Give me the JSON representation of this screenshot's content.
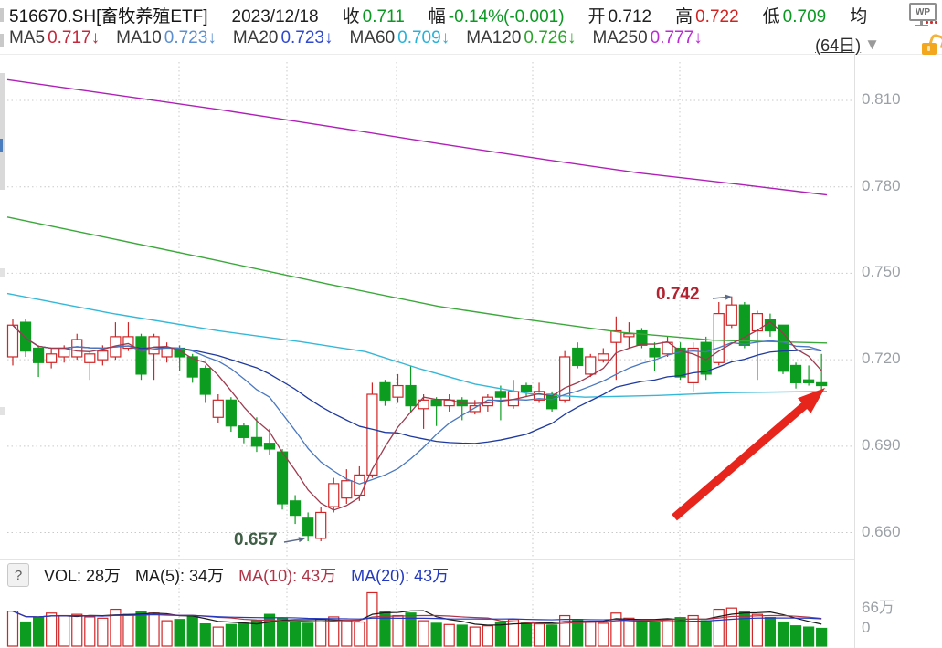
{
  "header": {
    "symbol": "516670.SH[畜牧养殖ETF]",
    "date": "2023/12/18",
    "fields": [
      {
        "label": "收",
        "value": "0.711",
        "color": "#0a9a22"
      },
      {
        "label": "幅",
        "value": "-0.14%(-0.001)",
        "color": "#0a9a22"
      },
      {
        "label": "开",
        "value": "0.712",
        "color": "#1f1f1f"
      },
      {
        "label": "高",
        "value": "0.722",
        "color": "#d02422"
      },
      {
        "label": "低",
        "value": "0.709",
        "color": "#0a9a22"
      },
      {
        "label": "均",
        "value": "",
        "color": "#1f1f1f"
      }
    ],
    "ma_row": [
      {
        "label": "MA5",
        "value": "0.717",
        "arrow": "↓",
        "color": "#c5283c"
      },
      {
        "label": "MA10",
        "value": "0.723",
        "arrow": "↓",
        "color": "#5b8fd0"
      },
      {
        "label": "MA20",
        "value": "0.723",
        "arrow": "↓",
        "color": "#2f49d1"
      },
      {
        "label": "MA60",
        "value": "0.709",
        "arrow": "↓",
        "color": "#27b2d8"
      },
      {
        "label": "MA120",
        "value": "0.726",
        "arrow": "↓",
        "color": "#2ca52c"
      },
      {
        "label": "MA250",
        "value": "0.777",
        "arrow": "↓",
        "color": "#bb2bd4"
      }
    ],
    "period": "(64日)",
    "wps_label": "WP"
  },
  "volume_header": {
    "help": "?",
    "vol": {
      "text": "VOL: 28万",
      "color": "#1c1c1c"
    },
    "ma5": {
      "text": "MA(5): 34万",
      "color": "#1c1c1c"
    },
    "ma10": {
      "text": "MA(10): 43万",
      "color": "#b03346"
    },
    "ma20": {
      "text": "MA(20): 43万",
      "color": "#2339c0"
    }
  },
  "chart_data": {
    "type": "candlestick",
    "title": "516670.SH 畜牧养殖ETF 日K线 (64日)",
    "period_days": 64,
    "y_ticks": [
      0.81,
      0.78,
      0.75,
      0.72,
      0.69,
      0.66
    ],
    "y_tick_labels": [
      "0.810",
      "0.780",
      "0.750",
      "0.720",
      "0.690",
      "0.660"
    ],
    "v_grid_x": [
      196,
      314,
      434,
      583,
      744
    ],
    "vol_ticks": [
      {
        "label": "66万",
        "y": 662
      },
      {
        "label": "0",
        "y": 689
      }
    ],
    "candles": [
      [
        0.721,
        0.734,
        0.718,
        0.732
      ],
      [
        0.733,
        0.734,
        0.721,
        0.723
      ],
      [
        0.724,
        0.725,
        0.714,
        0.719
      ],
      [
        0.719,
        0.724,
        0.717,
        0.722
      ],
      [
        0.721,
        0.725,
        0.719,
        0.724
      ],
      [
        0.721,
        0.729,
        0.72,
        0.727
      ],
      [
        0.719,
        0.723,
        0.713,
        0.722
      ],
      [
        0.72,
        0.725,
        0.718,
        0.723
      ],
      [
        0.721,
        0.733,
        0.72,
        0.728
      ],
      [
        0.724,
        0.733,
        0.723,
        0.728
      ],
      [
        0.728,
        0.729,
        0.713,
        0.715
      ],
      [
        0.722,
        0.729,
        0.713,
        0.728
      ],
      [
        0.721,
        0.726,
        0.719,
        0.724
      ],
      [
        0.724,
        0.725,
        0.716,
        0.721
      ],
      [
        0.721,
        0.722,
        0.712,
        0.714
      ],
      [
        0.717,
        0.718,
        0.705,
        0.708
      ],
      [
        0.7,
        0.708,
        0.698,
        0.706
      ],
      [
        0.706,
        0.707,
        0.695,
        0.697
      ],
      [
        0.697,
        0.698,
        0.691,
        0.693
      ],
      [
        0.693,
        0.7,
        0.688,
        0.69
      ],
      [
        0.691,
        0.696,
        0.687,
        0.689
      ],
      [
        0.688,
        0.689,
        0.668,
        0.67
      ],
      [
        0.671,
        0.673,
        0.663,
        0.666
      ],
      [
        0.665,
        0.667,
        0.657,
        0.659
      ],
      [
        0.658,
        0.669,
        0.657,
        0.667
      ],
      [
        0.669,
        0.679,
        0.667,
        0.677
      ],
      [
        0.672,
        0.682,
        0.67,
        0.678
      ],
      [
        0.673,
        0.683,
        0.671,
        0.68
      ],
      [
        0.68,
        0.712,
        0.679,
        0.708
      ],
      [
        0.712,
        0.713,
        0.704,
        0.706
      ],
      [
        0.707,
        0.715,
        0.705,
        0.711
      ],
      [
        0.711,
        0.718,
        0.702,
        0.704
      ],
      [
        0.703,
        0.708,
        0.696,
        0.706
      ],
      [
        0.706,
        0.707,
        0.697,
        0.704
      ],
      [
        0.704,
        0.708,
        0.702,
        0.706
      ],
      [
        0.706,
        0.707,
        0.699,
        0.704
      ],
      [
        0.702,
        0.706,
        0.701,
        0.704
      ],
      [
        0.704,
        0.708,
        0.702,
        0.707
      ],
      [
        0.709,
        0.711,
        0.699,
        0.707
      ],
      [
        0.704,
        0.713,
        0.703,
        0.709
      ],
      [
        0.711,
        0.712,
        0.707,
        0.709
      ],
      [
        0.706,
        0.712,
        0.705,
        0.709
      ],
      [
        0.708,
        0.709,
        0.702,
        0.703
      ],
      [
        0.706,
        0.723,
        0.705,
        0.721
      ],
      [
        0.724,
        0.726,
        0.717,
        0.718
      ],
      [
        0.715,
        0.722,
        0.714,
        0.721
      ],
      [
        0.72,
        0.724,
        0.719,
        0.722
      ],
      [
        0.726,
        0.735,
        0.713,
        0.73
      ],
      [
        0.728,
        0.733,
        0.724,
        0.729
      ],
      [
        0.73,
        0.731,
        0.724,
        0.725
      ],
      [
        0.724,
        0.726,
        0.716,
        0.721
      ],
      [
        0.722,
        0.728,
        0.721,
        0.726
      ],
      [
        0.724,
        0.726,
        0.713,
        0.714
      ],
      [
        0.712,
        0.726,
        0.709,
        0.724
      ],
      [
        0.726,
        0.728,
        0.713,
        0.715
      ],
      [
        0.719,
        0.74,
        0.718,
        0.736
      ],
      [
        0.732,
        0.742,
        0.731,
        0.739
      ],
      [
        0.739,
        0.74,
        0.724,
        0.725
      ],
      [
        0.73,
        0.737,
        0.713,
        0.736
      ],
      [
        0.734,
        0.736,
        0.728,
        0.73
      ],
      [
        0.732,
        0.732,
        0.715,
        0.716
      ],
      [
        0.718,
        0.719,
        0.71,
        0.712
      ],
      [
        0.713,
        0.718,
        0.711,
        0.712
      ],
      [
        0.712,
        0.722,
        0.709,
        0.711
      ]
    ],
    "volumes": [
      55,
      38,
      45,
      52,
      48,
      50,
      46,
      44,
      58,
      50,
      55,
      52,
      40,
      42,
      48,
      35,
      30,
      34,
      36,
      40,
      50,
      44,
      38,
      36,
      42,
      46,
      40,
      38,
      84,
      55,
      48,
      52,
      40,
      36,
      34,
      33,
      30,
      32,
      38,
      42,
      36,
      35,
      33,
      48,
      42,
      38,
      36,
      52,
      44,
      40,
      38,
      42,
      45,
      48,
      40,
      58,
      60,
      55,
      50,
      45,
      38,
      32,
      30,
      28
    ],
    "ma_windows": {
      "ma5": 5,
      "ma10": 10,
      "ma20": 20
    },
    "ma_overlays": {
      "ma250": [
        [
          8,
          0.8172
        ],
        [
          120,
          0.8122
        ],
        [
          240,
          0.8068
        ],
        [
          360,
          0.801
        ],
        [
          480,
          0.795
        ],
        [
          600,
          0.7893
        ],
        [
          700,
          0.7848
        ],
        [
          800,
          0.7812
        ],
        [
          905,
          0.7772
        ]
      ],
      "ma120": [
        [
          8,
          0.7695
        ],
        [
          120,
          0.7622
        ],
        [
          240,
          0.7543
        ],
        [
          360,
          0.7462
        ],
        [
          480,
          0.7385
        ],
        [
          580,
          0.7338
        ],
        [
          680,
          0.7295
        ],
        [
          780,
          0.7268
        ],
        [
          905,
          0.7258
        ]
      ],
      "ma60": [
        [
          8,
          0.743
        ],
        [
          120,
          0.7362
        ],
        [
          240,
          0.73
        ],
        [
          330,
          0.7262
        ],
        [
          400,
          0.7228
        ],
        [
          460,
          0.7168
        ],
        [
          520,
          0.7115
        ],
        [
          580,
          0.7082
        ],
        [
          640,
          0.707
        ],
        [
          720,
          0.7076
        ],
        [
          800,
          0.7086
        ],
        [
          905,
          0.709
        ]
      ]
    },
    "colors": {
      "up": "#cf2526",
      "down": "#0c9c1f",
      "ma5": "#9e3a4e",
      "ma10": "#4a78c0",
      "ma20": "#1f3a9e",
      "ma60": "#35b8d8",
      "ma120": "#3aa83a",
      "ma250": "#b020b8",
      "vol_ma5": "#1a1a1a",
      "vol_ma10": "#b03346",
      "vol_ma20": "#2339c0",
      "grid": "#c9c9c9",
      "annotation_arrow": "#e8251c",
      "small_arrow": "#5a6a88"
    },
    "annotations": {
      "high_label": "0.742",
      "low_label": "0.657",
      "high_arrow": {
        "from": [
          780,
          327
        ],
        "to": [
          801,
          325
        ]
      },
      "low_arrow": {
        "from": [
          311,
          594
        ],
        "to": [
          334,
          590
        ]
      },
      "big_arrow": {
        "from": [
          738,
          567
        ],
        "to": [
          903,
          425
        ]
      }
    }
  }
}
